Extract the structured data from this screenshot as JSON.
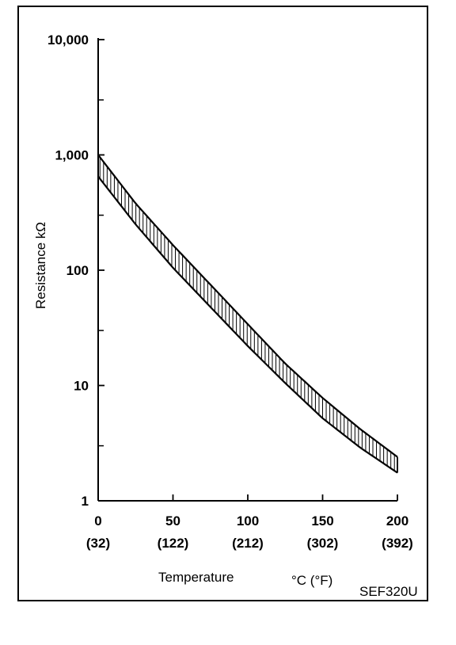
{
  "chart_data": {
    "type": "area",
    "yscale": "log",
    "xlim": [
      0,
      200
    ],
    "ylim": [
      1,
      10000
    ],
    "y_ticks": [
      {
        "value": 1,
        "label": "1"
      },
      {
        "value": 10,
        "label": "10"
      },
      {
        "value": 100,
        "label": "100"
      },
      {
        "value": 1000,
        "label": "1,000"
      },
      {
        "value": 10000,
        "label": "10,000"
      }
    ],
    "x_ticks": [
      {
        "value": 0,
        "label": "0",
        "sublabel": "(32)"
      },
      {
        "value": 50,
        "label": "50",
        "sublabel": "(122)"
      },
      {
        "value": 100,
        "label": "100",
        "sublabel": "(212)"
      },
      {
        "value": 150,
        "label": "150",
        "sublabel": "(302)"
      },
      {
        "value": 200,
        "label": "200",
        "sublabel": "(392)"
      }
    ],
    "xlabel": "Temperature",
    "xunit": "°C (°F)",
    "ylabel": "Resistance kΩ",
    "grid": false,
    "figure_code": "SEF320U",
    "series": [
      {
        "values": [
          {
            "x": 0,
            "y": 1000
          },
          {
            "x": 25,
            "y": 380
          },
          {
            "x": 50,
            "y": 165
          },
          {
            "x": 75,
            "y": 75
          },
          {
            "x": 100,
            "y": 34
          },
          {
            "x": 125,
            "y": 15.5
          },
          {
            "x": 150,
            "y": 7.8
          },
          {
            "x": 175,
            "y": 4.2
          },
          {
            "x": 200,
            "y": 2.4
          }
        ]
      },
      {
        "values": [
          {
            "x": 0,
            "y": 650
          },
          {
            "x": 25,
            "y": 250
          },
          {
            "x": 50,
            "y": 105
          },
          {
            "x": 75,
            "y": 48
          },
          {
            "x": 100,
            "y": 22
          },
          {
            "x": 125,
            "y": 10.5
          },
          {
            "x": 150,
            "y": 5.2
          },
          {
            "x": 175,
            "y": 2.9
          },
          {
            "x": 200,
            "y": 1.75
          }
        ]
      }
    ]
  }
}
